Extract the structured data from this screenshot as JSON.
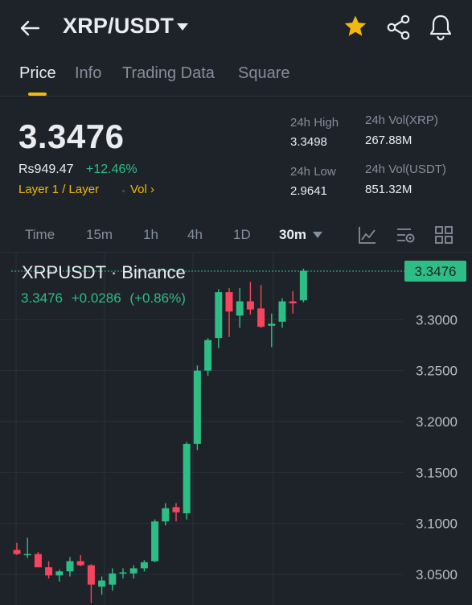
{
  "header": {
    "pair": "XRP/USDT"
  },
  "tabs": [
    "Price",
    "Info",
    "Trading Data",
    "Square"
  ],
  "ticker": {
    "last_price": "3.3476",
    "local_price": "Rs949.47",
    "change_pct": "+12.46%",
    "tag_layer": "Layer 1 / Layer",
    "tag_vol": "Vol ›",
    "high_label": "24h High",
    "high_value": "3.3498",
    "low_label": "24h Low",
    "low_value": "2.9641",
    "vol_base_label": "24h Vol(XRP)",
    "vol_base_value": "267.88M",
    "vol_quote_label": "24h Vol(USDT)",
    "vol_quote_value": "851.32M"
  },
  "intervals": {
    "items": [
      "Time",
      "15m",
      "1h",
      "4h",
      "1D",
      "30m"
    ],
    "active": "30m"
  },
  "chart": {
    "title": "XRPUSDT · Binance",
    "legend_price": "3.3476",
    "legend_change": "+0.0286",
    "legend_change_pct": "(+0.86%)",
    "current_tag": "3.3476"
  },
  "colors": {
    "up": "#2ebd85",
    "down": "#f6465d",
    "accent": "#f0b90b",
    "background": "#1e2329"
  },
  "chart_data": {
    "type": "candlestick",
    "title": "XRPUSDT · Binance",
    "y_ticks": [
      3.05,
      3.1,
      3.15,
      3.2,
      3.25,
      3.3
    ],
    "y_tick_labels": [
      "3.0500",
      "3.1000",
      "3.1500",
      "3.2000",
      "3.2500",
      "3.3000"
    ],
    "ylim": [
      3.02,
      3.365
    ],
    "current_price": 3.3476,
    "candles": [
      {
        "o": 3.074,
        "h": 3.081,
        "l": 3.069,
        "c": 3.07
      },
      {
        "o": 3.07,
        "h": 3.086,
        "l": 3.066,
        "c": 3.07
      },
      {
        "o": 3.07,
        "h": 3.072,
        "l": 3.057,
        "c": 3.057
      },
      {
        "o": 3.057,
        "h": 3.063,
        "l": 3.046,
        "c": 3.049
      },
      {
        "o": 3.049,
        "h": 3.055,
        "l": 3.043,
        "c": 3.053
      },
      {
        "o": 3.053,
        "h": 3.067,
        "l": 3.048,
        "c": 3.063
      },
      {
        "o": 3.063,
        "h": 3.069,
        "l": 3.058,
        "c": 3.059
      },
      {
        "o": 3.059,
        "h": 3.06,
        "l": 3.022,
        "c": 3.04
      },
      {
        "o": 3.038,
        "h": 3.048,
        "l": 3.03,
        "c": 3.044
      },
      {
        "o": 3.04,
        "h": 3.056,
        "l": 3.034,
        "c": 3.051
      },
      {
        "o": 3.051,
        "h": 3.056,
        "l": 3.046,
        "c": 3.052
      },
      {
        "o": 3.051,
        "h": 3.059,
        "l": 3.046,
        "c": 3.056
      },
      {
        "o": 3.056,
        "h": 3.064,
        "l": 3.053,
        "c": 3.062
      },
      {
        "o": 3.063,
        "h": 3.104,
        "l": 3.062,
        "c": 3.102
      },
      {
        "o": 3.102,
        "h": 3.12,
        "l": 3.098,
        "c": 3.115
      },
      {
        "o": 3.116,
        "h": 3.12,
        "l": 3.102,
        "c": 3.111
      },
      {
        "o": 3.11,
        "h": 3.18,
        "l": 3.104,
        "c": 3.178
      },
      {
        "o": 3.178,
        "h": 3.255,
        "l": 3.172,
        "c": 3.25
      },
      {
        "o": 3.25,
        "h": 3.282,
        "l": 3.245,
        "c": 3.28
      },
      {
        "o": 3.282,
        "h": 3.33,
        "l": 3.272,
        "c": 3.327
      },
      {
        "o": 3.327,
        "h": 3.331,
        "l": 3.283,
        "c": 3.308
      },
      {
        "o": 3.304,
        "h": 3.331,
        "l": 3.292,
        "c": 3.318
      },
      {
        "o": 3.318,
        "h": 3.337,
        "l": 3.305,
        "c": 3.31
      },
      {
        "o": 3.311,
        "h": 3.334,
        "l": 3.292,
        "c": 3.293
      },
      {
        "o": 3.294,
        "h": 3.306,
        "l": 3.273,
        "c": 3.296
      },
      {
        "o": 3.298,
        "h": 3.321,
        "l": 3.292,
        "c": 3.318
      },
      {
        "o": 3.318,
        "h": 3.328,
        "l": 3.306,
        "c": 3.316
      },
      {
        "o": 3.319,
        "h": 3.35,
        "l": 3.317,
        "c": 3.348
      }
    ]
  }
}
